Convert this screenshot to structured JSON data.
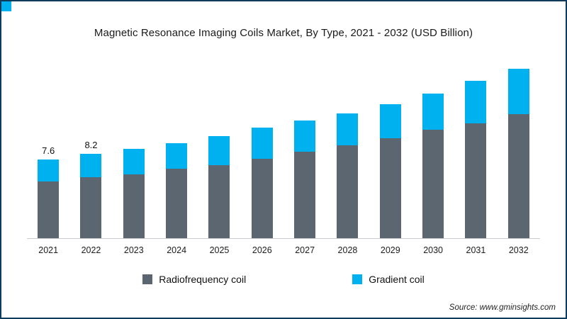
{
  "meta": {
    "title": "Magnetic Resonance Imaging Coils Market, By Type, 2021 - 2032 (USD Billion)",
    "source_text": "Source: www.gminsights.com"
  },
  "colors": {
    "frame_border": "#0e3a5c",
    "corner_accent": "#00b1f0",
    "radiofrequency_coil": "#5b6671",
    "gradient_coil": "#00b1f0",
    "axis_line": "#c9cdd1"
  },
  "legend": [
    {
      "label": "Radiofrequency coil",
      "color": "#5b6671"
    },
    {
      "label": "Gradient coil",
      "color": "#00b1f0"
    }
  ],
  "chart_data": {
    "type": "bar",
    "stacked": true,
    "title": "Magnetic Resonance Imaging Coils Market, By Type, 2021 - 2032 (USD Billion)",
    "xlabel": "",
    "ylabel": "USD Billion",
    "categories": [
      "2021",
      "2022",
      "2023",
      "2024",
      "2025",
      "2026",
      "2027",
      "2028",
      "2029",
      "2030",
      "2031",
      "2032"
    ],
    "series": [
      {
        "name": "Radiofrequency coil",
        "color": "#5b6671",
        "values": [
          5.5,
          5.9,
          6.2,
          6.7,
          7.1,
          7.7,
          8.4,
          9.0,
          9.7,
          10.5,
          11.1,
          12.0
        ]
      },
      {
        "name": "Gradient coil",
        "color": "#00b1f0",
        "values": [
          2.1,
          2.3,
          2.5,
          2.5,
          2.8,
          3.0,
          3.0,
          3.1,
          3.3,
          3.5,
          4.1,
          4.4
        ]
      }
    ],
    "totals": [
      7.6,
      8.2,
      8.7,
      9.2,
      9.9,
      10.7,
      11.4,
      12.1,
      13.0,
      14.0,
      15.2,
      16.4
    ],
    "bar_labels": [
      "7.6",
      "8.2",
      "",
      "",
      "",
      "",
      "",
      "",
      "",
      "",
      "",
      ""
    ],
    "ylim": [
      0,
      18
    ],
    "grid": false,
    "legend_position": "bottom"
  }
}
